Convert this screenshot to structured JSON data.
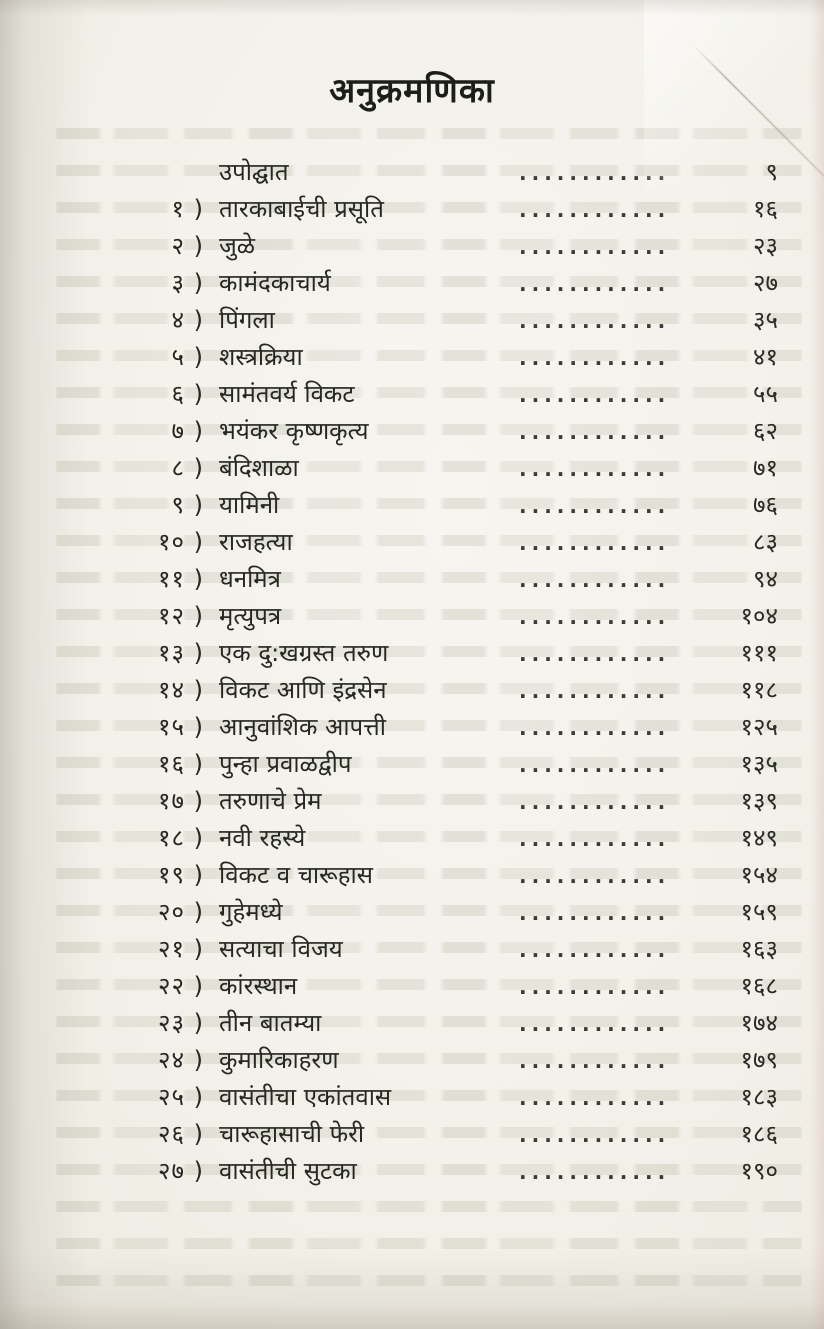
{
  "document": {
    "title": "अनुक्रमणिका",
    "dot_leader": "..............",
    "entries": [
      {
        "num": "",
        "title": "उपोद्घात",
        "page": "९"
      },
      {
        "num": "१ )",
        "title": "तारकाबाईची प्रसूति",
        "page": "१६"
      },
      {
        "num": "२ )",
        "title": "जुळे",
        "page": "२३"
      },
      {
        "num": "३ )",
        "title": "कामंदकाचार्य",
        "page": "२७"
      },
      {
        "num": "४ )",
        "title": "पिंगला",
        "page": "३५"
      },
      {
        "num": "५ )",
        "title": "शस्त्रक्रिया",
        "page": "४१"
      },
      {
        "num": "६ )",
        "title": "सामंतवर्य विकट",
        "page": "५५"
      },
      {
        "num": "७ )",
        "title": "भयंकर कृष्णकृत्य",
        "page": "६२"
      },
      {
        "num": "८ )",
        "title": "बंदिशाळा",
        "page": "७१"
      },
      {
        "num": "९ )",
        "title": "यामिनी",
        "page": "७६"
      },
      {
        "num": "१० )",
        "title": "राजहत्या",
        "page": "८३"
      },
      {
        "num": "११ )",
        "title": "धनमित्र",
        "page": "९४"
      },
      {
        "num": "१२ )",
        "title": "मृत्युपत्र",
        "page": "१०४"
      },
      {
        "num": "१३ )",
        "title": "एक दु:खग्रस्त तरुण",
        "page": "१११"
      },
      {
        "num": "१४ )",
        "title": "विकट आणि इंद्रसेन",
        "page": "११८"
      },
      {
        "num": "१५ )",
        "title": "आनुवांशिक आपत्ती",
        "page": "१२५"
      },
      {
        "num": "१६ )",
        "title": "पुन्हा प्रवाळद्वीप",
        "page": "१३५"
      },
      {
        "num": "१७ )",
        "title": "तरुणाचे प्रेम",
        "page": "१३९"
      },
      {
        "num": "१८ )",
        "title": "नवी रहस्ये",
        "page": "१४९"
      },
      {
        "num": "१९ )",
        "title": "विकट व चारूहास",
        "page": "१५४"
      },
      {
        "num": "२० )",
        "title": "गुहेमध्ये",
        "page": "१५९"
      },
      {
        "num": "२१ )",
        "title": "सत्याचा विजय",
        "page": "१६३"
      },
      {
        "num": "२२ )",
        "title": "कांरस्थान",
        "page": "१६८"
      },
      {
        "num": "२३ )",
        "title": "तीन बातम्या",
        "page": "१७४"
      },
      {
        "num": "२४ )",
        "title": "कुमारिकाहरण",
        "page": "१७९"
      },
      {
        "num": "२५ )",
        "title": "वासंतीचा एकांतवास",
        "page": "१८३"
      },
      {
        "num": "२६ )",
        "title": "चारूहासाची फेरी",
        "page": "१८६"
      },
      {
        "num": "२७ )",
        "title": "वासंतीची सुटका",
        "page": "१९०"
      }
    ]
  }
}
